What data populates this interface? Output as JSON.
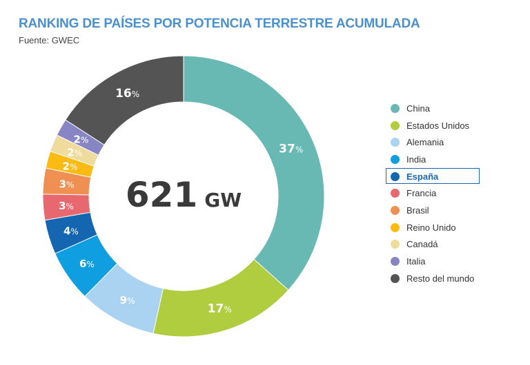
{
  "header": {
    "title": "RANKING DE PAÍSES POR POTENCIA TERRESTRE ACUMULADA",
    "source": "Fuente: GWEC"
  },
  "center": {
    "value": "621",
    "unit": "GW"
  },
  "legend": {
    "highlighted": "España"
  },
  "chart_data": {
    "type": "pie",
    "variant": "donut",
    "title": "RANKING DE PAÍSES POR POTENCIA TERRESTRE ACUMULADA",
    "total_label": "621 GW",
    "legend_position": "right",
    "categories": [
      "China",
      "Estados Unidos",
      "Alemania",
      "India",
      "España",
      "Francia",
      "Brasil",
      "Reino Unido",
      "Canadá",
      "Italia",
      "Resto del mundo"
    ],
    "values": [
      37,
      17,
      9,
      6,
      4,
      3,
      3,
      2,
      2,
      2,
      16
    ],
    "value_suffix": "%",
    "colors": [
      "#68b9b3",
      "#b0cc3f",
      "#a9d3f0",
      "#0f9ee0",
      "#1466b0",
      "#e8686f",
      "#f08f52",
      "#fcbb12",
      "#efdc9d",
      "#8785c4",
      "#545454"
    ]
  }
}
